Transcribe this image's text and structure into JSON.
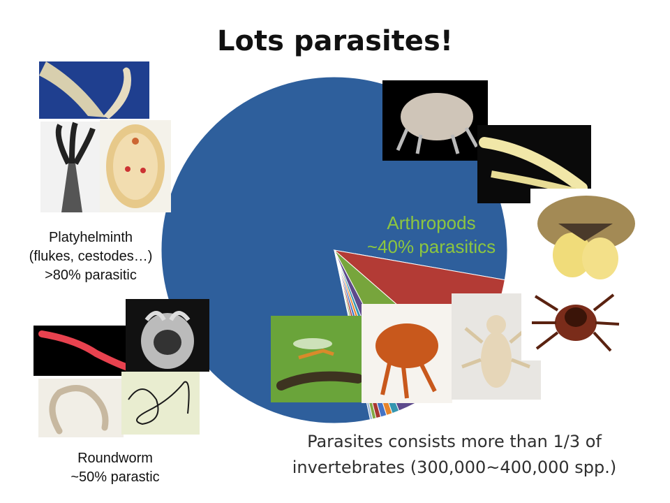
{
  "title": "Lots parasites!",
  "chart_data": {
    "type": "pie",
    "title": "Lots parasites!",
    "series": [
      {
        "values": [
          73.3,
          7.8,
          5.3,
          1.5,
          0.6,
          0.5,
          0.5,
          0.4,
          0.3,
          0.2
        ]
      }
    ],
    "colors": [
      "#2e5f9c",
      "#b33b35",
      "#77a53c",
      "#5d4a8c",
      "#3596b0",
      "#e8842a",
      "#4473c5",
      "#a83732",
      "#82a844",
      "#9fb7d6"
    ]
  },
  "labels": {
    "arthropods": [
      "Arthropods",
      "~40% parasitics"
    ],
    "platyhelminth": [
      "Platyhelminth",
      "(flukes, cestodes…)",
      ">80% parasitic"
    ],
    "roundworm": [
      "Roundworm",
      "~50% parastic"
    ]
  },
  "caption": [
    "Parasites consists more than 1/3 of",
    "invertebrates (300,000~400,000 spp.)"
  ]
}
